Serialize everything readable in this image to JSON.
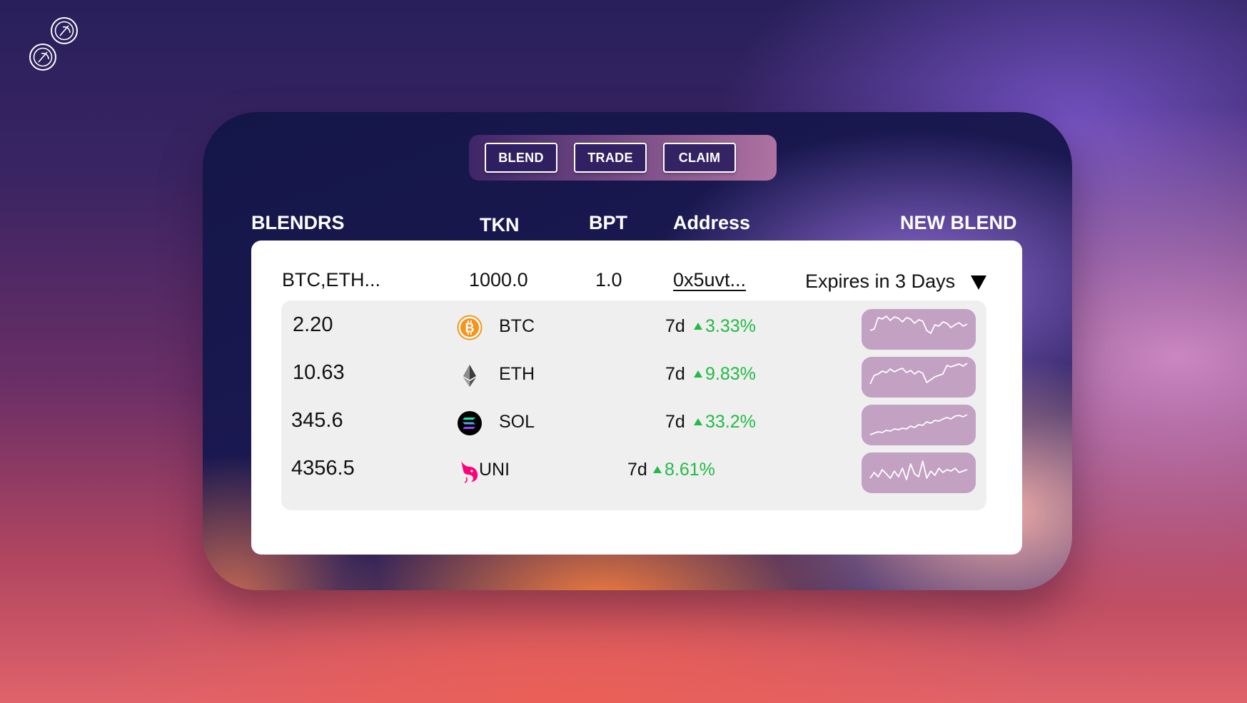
{
  "logo": {
    "icon": "coins-logo-icon"
  },
  "tabs": [
    {
      "label": "BLEND"
    },
    {
      "label": "TRADE"
    },
    {
      "label": "CLAIM"
    }
  ],
  "headers": {
    "blendrs": "BLENDRS",
    "tkn": "TKN",
    "bpt": "BPT",
    "address": "Address",
    "new_blend": "NEW BLEND"
  },
  "blend": {
    "name": "BTC,ETH...",
    "tkn": "1000.0",
    "bpt": "1.0",
    "address": "0x5uvt...",
    "expires": "Expires in 3 Days"
  },
  "assets": [
    {
      "amount": "2.20",
      "symbol": "BTC",
      "period": "7d",
      "change": "3.33%",
      "icon": "bitcoin-icon",
      "spark": [
        30,
        28,
        12,
        14,
        10,
        16,
        11,
        13,
        18,
        12,
        14,
        20,
        15,
        17,
        30,
        34,
        22,
        24,
        18,
        20,
        26,
        22,
        19,
        24,
        21
      ]
    },
    {
      "amount": "10.63",
      "symbol": "ETH",
      "period": "7d",
      "change": "9.83%",
      "icon": "ethereum-icon",
      "spark": [
        38,
        26,
        24,
        20,
        22,
        17,
        21,
        18,
        16,
        22,
        19,
        24,
        20,
        23,
        36,
        32,
        28,
        26,
        24,
        12,
        14,
        12,
        10,
        13,
        9
      ]
    },
    {
      "amount": "345.6",
      "symbol": "SOL",
      "period": "7d",
      "change": "33.2%",
      "icon": "solana-icon",
      "spark": [
        42,
        40,
        38,
        39,
        36,
        37,
        34,
        35,
        33,
        34,
        30,
        32,
        28,
        29,
        24,
        26,
        22,
        23,
        20,
        18,
        20,
        16,
        15,
        17,
        14
      ]
    },
    {
      "amount": "4356.5",
      "symbol": "UNI",
      "period": "7d",
      "change": "8.61%",
      "icon": "uniswap-icon",
      "spark": [
        36,
        28,
        34,
        24,
        30,
        36,
        26,
        34,
        22,
        38,
        16,
        30,
        34,
        12,
        36,
        26,
        32,
        22,
        28,
        24,
        26,
        22,
        28,
        26,
        24
      ]
    }
  ],
  "colors": {
    "positive": "#22bb44",
    "sparkline_bg": "#c2a1c2"
  }
}
